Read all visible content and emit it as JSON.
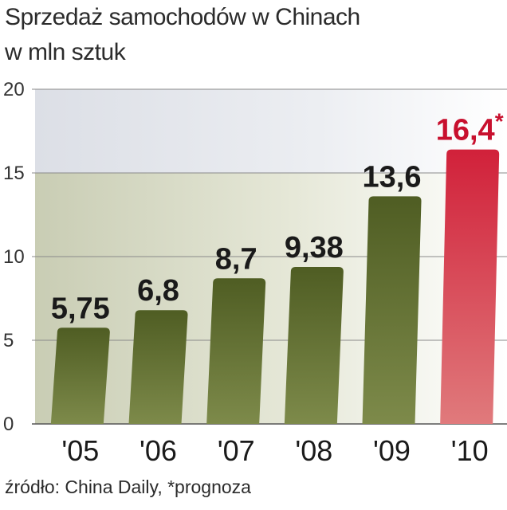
{
  "title": "Sprzedaż samochodów w Chinach",
  "subtitle": "w mln sztuk",
  "source": "źródło: China Daily, *prognoza",
  "colors": {
    "bar": "#5b6a2a",
    "bar_top": "#4a5820",
    "forecast": "#d9485a",
    "forecast_top": "#c8102e",
    "label": "#1a1a1a",
    "forecast_label": "#c8102e"
  },
  "chart_data": {
    "type": "bar",
    "categories": [
      "'05",
      "'06",
      "'07",
      "'08",
      "'09",
      "'10"
    ],
    "values": [
      5.75,
      6.8,
      8.7,
      9.38,
      13.6,
      16.4
    ],
    "data_labels": [
      "5,75",
      "6,8",
      "8,7",
      "9,38",
      "13,6",
      "16,4"
    ],
    "forecast_marker": "*",
    "forecast_index": 5,
    "yticks": [
      0,
      5,
      10,
      15,
      20
    ],
    "ylim": [
      0,
      20
    ],
    "grid": true,
    "legend": "none"
  }
}
